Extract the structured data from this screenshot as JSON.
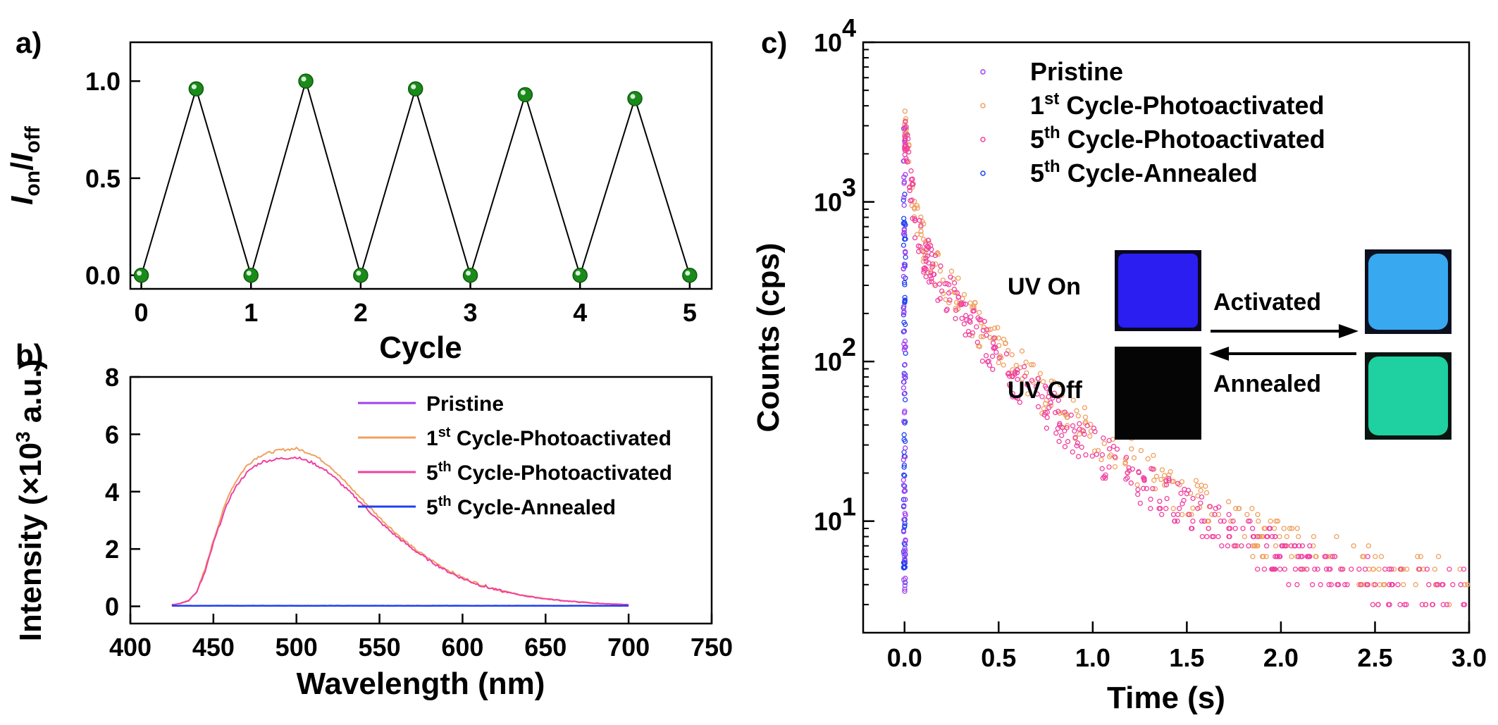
{
  "chart_data": [
    {
      "panel": "a)",
      "type": "line",
      "xlabel": "Cycle",
      "ylabel": "I_on/I_off",
      "xlim": [
        -0.1,
        5.2
      ],
      "ylim": [
        -0.07,
        1.2
      ],
      "xticks": [
        "0",
        "1",
        "2",
        "3",
        "4",
        "5"
      ],
      "yticks": [
        "0.0",
        "0.5",
        "1.0"
      ],
      "x": [
        0,
        0.5,
        1,
        1.5,
        2,
        2.5,
        3,
        3.5,
        4,
        4.5,
        5
      ],
      "y": [
        0,
        0.96,
        0,
        1.0,
        0,
        0.96,
        0,
        0.93,
        0,
        0.91,
        0
      ],
      "marker_color": "#1a8a1a"
    },
    {
      "panel": "b)",
      "type": "line",
      "xlabel": "Wavelength (nm)",
      "ylabel": "Intensity (×10³ a.u.)",
      "xlim": [
        400,
        750
      ],
      "ylim": [
        -0.6,
        8
      ],
      "xticks": [
        "400",
        "450",
        "500",
        "550",
        "600",
        "650",
        "700",
        "750"
      ],
      "yticks": [
        "0",
        "2",
        "4",
        "6",
        "8"
      ],
      "x": [
        425,
        430,
        435,
        440,
        445,
        450,
        455,
        460,
        465,
        470,
        475,
        480,
        490,
        500,
        510,
        520,
        530,
        540,
        550,
        560,
        570,
        580,
        590,
        600,
        610,
        620,
        630,
        640,
        650,
        660,
        670,
        680,
        690,
        700
      ],
      "series": [
        {
          "name": "Pristine",
          "color": "#a040f0",
          "values": [
            0.02,
            0.02,
            0.02,
            0.02,
            0.02,
            0.02,
            0.02,
            0.02,
            0.02,
            0.02,
            0.02,
            0.02,
            0.02,
            0.02,
            0.02,
            0.02,
            0.02,
            0.02,
            0.02,
            0.02,
            0.02,
            0.02,
            0.02,
            0.02,
            0.02,
            0.02,
            0.02,
            0.02,
            0.02,
            0.02,
            0.02,
            0.02,
            0.02,
            0.02
          ]
        },
        {
          "name": "1st Cycle-Photoactivated",
          "color": "#f0a060",
          "values": [
            0.05,
            0.1,
            0.2,
            0.5,
            1.3,
            2.3,
            3.2,
            4.0,
            4.5,
            4.9,
            5.15,
            5.3,
            5.45,
            5.5,
            5.3,
            4.9,
            4.3,
            3.7,
            3.1,
            2.55,
            2.05,
            1.65,
            1.3,
            1.0,
            0.78,
            0.6,
            0.46,
            0.35,
            0.27,
            0.2,
            0.15,
            0.11,
            0.08,
            0.06
          ]
        },
        {
          "name": "5th Cycle-Photoactivated",
          "color": "#f040a0",
          "values": [
            0.05,
            0.1,
            0.2,
            0.5,
            1.2,
            2.2,
            3.05,
            3.8,
            4.3,
            4.65,
            4.9,
            5.05,
            5.15,
            5.2,
            5.0,
            4.65,
            4.1,
            3.55,
            2.95,
            2.45,
            2.0,
            1.6,
            1.25,
            0.97,
            0.75,
            0.58,
            0.45,
            0.34,
            0.26,
            0.2,
            0.15,
            0.11,
            0.08,
            0.06
          ]
        },
        {
          "name": "5th Cycle-Annealed",
          "color": "#2040f0",
          "values": [
            0.02,
            0.02,
            0.02,
            0.02,
            0.02,
            0.02,
            0.02,
            0.02,
            0.02,
            0.02,
            0.02,
            0.02,
            0.02,
            0.02,
            0.02,
            0.02,
            0.02,
            0.02,
            0.02,
            0.02,
            0.02,
            0.02,
            0.02,
            0.02,
            0.02,
            0.02,
            0.02,
            0.02,
            0.02,
            0.02,
            0.02,
            0.02,
            0.02,
            0.02
          ]
        }
      ],
      "legend_labels": [
        {
          "text": "Pristine",
          "sup": "",
          "rest": ""
        },
        {
          "text": "1",
          "sup": "st",
          "rest": " Cycle-Photoactivated"
        },
        {
          "text": "5",
          "sup": "th",
          "rest": " Cycle-Photoactivated"
        },
        {
          "text": "5",
          "sup": "th",
          "rest": " Cycle-Annealed"
        }
      ]
    },
    {
      "panel": "c)",
      "type": "scatter",
      "xlabel": "Time (s)",
      "ylabel": "Counts (cps)",
      "yscale": "log",
      "xlim": [
        -0.22,
        3.0
      ],
      "ylim": [
        2,
        10000
      ],
      "xticks": [
        "0.0",
        "0.5",
        "1.0",
        "1.5",
        "2.0",
        "2.5",
        "3.0"
      ],
      "yticks": [
        "10^1",
        "10^2",
        "10^3",
        "10^4"
      ],
      "series": [
        {
          "name": "Pristine",
          "color": "#a040f0",
          "decay": "spike",
          "peak": 3000
        },
        {
          "name": "1st Cycle-Photoactivated",
          "color": "#f0a060",
          "decay": "slow",
          "peak": 3000,
          "x": [
            0,
            0.05,
            0.1,
            0.2,
            0.3,
            0.5,
            0.7,
            1.0,
            1.3,
            1.6,
            2.0,
            2.5,
            3.0
          ],
          "y": [
            3000,
            900,
            550,
            330,
            230,
            120,
            70,
            35,
            20,
            12,
            7,
            5,
            4
          ]
        },
        {
          "name": "5th Cycle-Photoactivated",
          "color": "#f040a0",
          "decay": "slow",
          "peak": 2800,
          "x": [
            0,
            0.05,
            0.1,
            0.2,
            0.3,
            0.5,
            0.7,
            1.0,
            1.3,
            1.6,
            2.0,
            2.5,
            3.0
          ],
          "y": [
            2800,
            850,
            500,
            290,
            200,
            100,
            58,
            28,
            16,
            10,
            6,
            4,
            3.5
          ]
        },
        {
          "name": "5th Cycle-Annealed",
          "color": "#2040f0",
          "decay": "spike",
          "peak": 1200
        }
      ],
      "legend_labels": [
        {
          "text": "Pristine",
          "sup": "",
          "rest": ""
        },
        {
          "text": "1",
          "sup": "st",
          "rest": " Cycle-Photoactivated"
        },
        {
          "text": "5",
          "sup": "th",
          "rest": " Cycle-Photoactivated"
        },
        {
          "text": "5",
          "sup": "th",
          "rest": " Cycle-Annealed"
        }
      ],
      "inset": {
        "uv_on": "UV On",
        "uv_off": "UV Off",
        "activated": "Activated",
        "annealed": "Annealed",
        "colors": {
          "uv_on": "#2a1ef0",
          "uv_off": "#050505",
          "activated": "#38a8f0",
          "annealed": "#1fd0a0"
        }
      }
    }
  ]
}
